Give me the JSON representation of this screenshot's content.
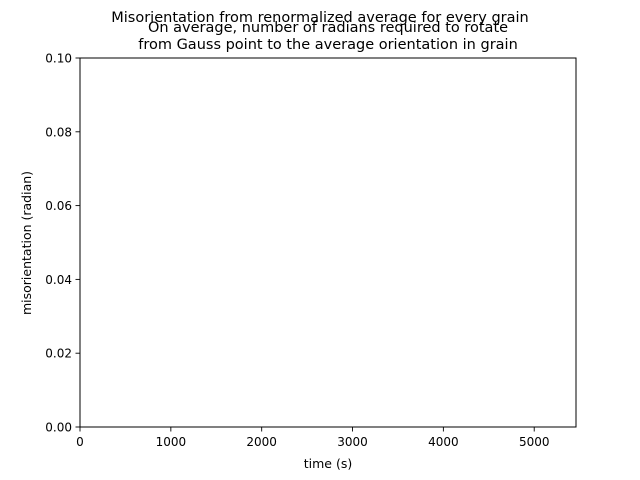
{
  "chart_data": {
    "type": "line",
    "title": "Misorientation from renormalized average for every grain",
    "subtitle": "On average, number of radians required to rotate\nfrom Gauss point to the average orientation in grain",
    "xlabel": "time (s)",
    "ylabel": "misorientation (radian)",
    "xlim": [
      0,
      5460
    ],
    "ylim": [
      0,
      0.1
    ],
    "x_ticks": [
      0,
      1000,
      2000,
      3000,
      4000,
      5000
    ],
    "x_tick_labels": [
      "0",
      "1000",
      "2000",
      "3000",
      "4000",
      "5000"
    ],
    "y_ticks": [
      0,
      0.02,
      0.04,
      0.06,
      0.08,
      0.1
    ],
    "y_tick_labels": [
      "0.00",
      "0.02",
      "0.04",
      "0.06",
      "0.08",
      "0.10"
    ],
    "grid": false,
    "series": []
  }
}
